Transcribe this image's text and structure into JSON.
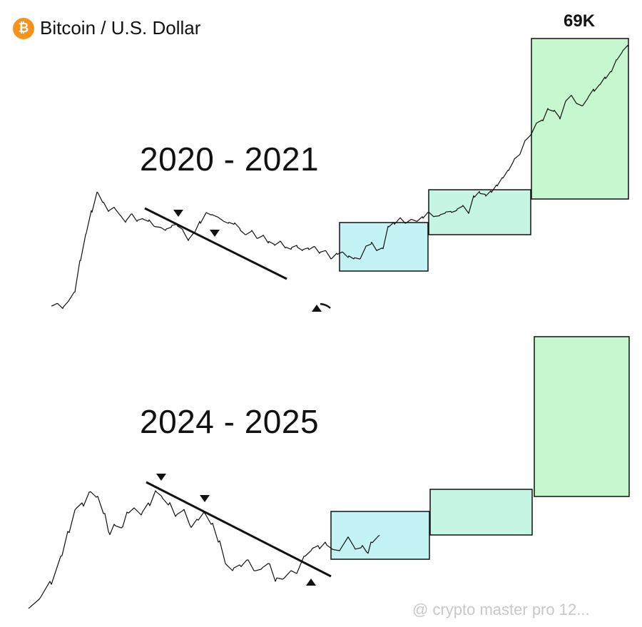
{
  "header": {
    "title": "Bitcoin / U.S. Dollar",
    "logo_symbol": "₿",
    "logo_color": "#F7931A"
  },
  "periods": [
    "2020 - 2021",
    "2024 - 2025"
  ],
  "peak_label": "69K",
  "watermark": "@ crypto master pro 12...",
  "colors": {
    "price_line": "#111111",
    "box_blue": "#c4f3f6",
    "box_mint": "#c6f5e3",
    "box_green": "#c6f7cf",
    "box_border": "#111111"
  },
  "chart_data": [
    {
      "type": "line",
      "title": "2020 - 2021",
      "series": [
        {
          "values": [
            3.6,
            3.7,
            3.5,
            3.8,
            4.2,
            6,
            8,
            10.5,
            12.9,
            11.5,
            10.4,
            10.9,
            10,
            9.2,
            10.1,
            9.3,
            9.6,
            9.3,
            8.8,
            8.7,
            8.4,
            8.7,
            9,
            8.5,
            7.5,
            8.2,
            9.3,
            10.1,
            10,
            9.8,
            9.4,
            9.1,
            9,
            8.6,
            8,
            8.3,
            7.7,
            7.9,
            7.3,
            7.2,
            7.4,
            6.9,
            6.8,
            7.1,
            6.7,
            6.9,
            7,
            6.5,
            6.7,
            6.1,
            6.5,
            6.6,
            6.2,
            6.1,
            6.1,
            6.9,
            7.2,
            6.7,
            6.9,
            8.8,
            9.2,
            9.6,
            9.1,
            9.5,
            9.3,
            9.8,
            10.3,
            9.8,
            9.9,
            10.2,
            10.4,
            10.5,
            11,
            10.3,
            12.4,
            13,
            12.6,
            13.1,
            14,
            15.2,
            16.5,
            18.3,
            19.6,
            23,
            24.5,
            28,
            29,
            33,
            32,
            30,
            35,
            38,
            35,
            34,
            37,
            41,
            43,
            47,
            50,
            57,
            62,
            67
          ]
        }
      ],
      "annotations": [
        "69K"
      ]
    },
    {
      "type": "line",
      "title": "2024 - 2025",
      "series": [
        {
          "values": []
        }
      ]
    }
  ]
}
